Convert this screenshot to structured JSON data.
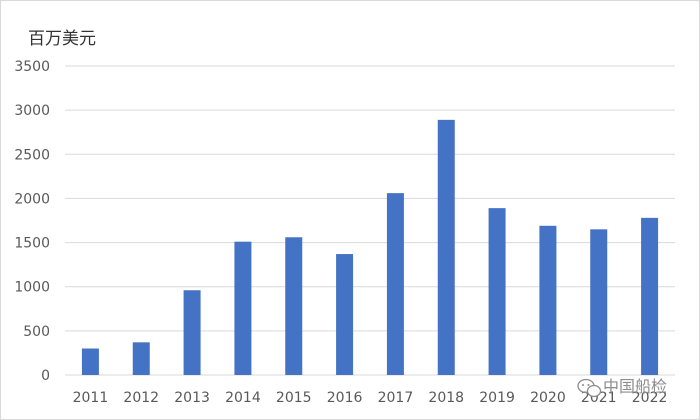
{
  "chart_data": {
    "type": "bar",
    "unit_label": "百万美元",
    "categories": [
      "2011",
      "2012",
      "2013",
      "2014",
      "2015",
      "2016",
      "2017",
      "2018",
      "2019",
      "2020",
      "2021",
      "2022"
    ],
    "values": [
      300,
      370,
      960,
      1510,
      1560,
      1370,
      2060,
      2890,
      1890,
      1690,
      1650,
      1780
    ],
    "ylim": [
      0,
      3500
    ],
    "yticks": [
      0,
      500,
      1000,
      1500,
      2000,
      2500,
      3000,
      3500
    ],
    "grid": true,
    "legend": "none",
    "bar_color": "#4472c4"
  },
  "watermark": {
    "text": "中国船检",
    "icon": "wechat-icon"
  }
}
